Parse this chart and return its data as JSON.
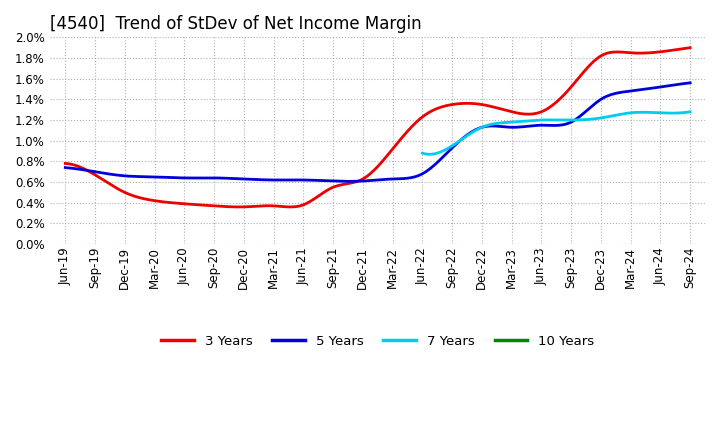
{
  "title": "[4540]  Trend of StDev of Net Income Margin",
  "background_color": "#ffffff",
  "plot_bg_color": "#ffffff",
  "grid_color": "#b0b0b0",
  "ylim": [
    0.0,
    0.02
  ],
  "yticks": [
    0.0,
    0.002,
    0.004,
    0.006,
    0.008,
    0.01,
    0.012,
    0.014,
    0.016,
    0.018,
    0.02
  ],
  "x_labels": [
    "Jun-19",
    "Sep-19",
    "Dec-19",
    "Mar-20",
    "Jun-20",
    "Sep-20",
    "Dec-20",
    "Mar-21",
    "Jun-21",
    "Sep-21",
    "Dec-21",
    "Mar-22",
    "Jun-22",
    "Sep-22",
    "Dec-22",
    "Mar-23",
    "Jun-23",
    "Sep-23",
    "Dec-23",
    "Mar-24",
    "Jun-24",
    "Sep-24"
  ],
  "series": {
    "3 Years": {
      "color": "#ee0000",
      "values": [
        0.0078,
        0.0067,
        0.005,
        0.0042,
        0.0039,
        0.0037,
        0.0036,
        0.0037,
        0.0038,
        0.0055,
        0.0063,
        0.0092,
        0.0123,
        0.0135,
        0.0135,
        0.0128,
        0.0128,
        0.0152,
        0.0182,
        0.0185,
        0.0186,
        0.019
      ]
    },
    "5 Years": {
      "color": "#0000dd",
      "values": [
        0.0074,
        0.007,
        0.0066,
        0.0065,
        0.0064,
        0.0064,
        0.0063,
        0.0062,
        0.0062,
        0.0061,
        0.0061,
        0.0063,
        0.0068,
        0.0093,
        0.0113,
        0.0113,
        0.0115,
        0.0118,
        0.014,
        0.0148,
        0.0152,
        0.0156
      ]
    },
    "7 Years": {
      "color": "#00ccee",
      "values": [
        null,
        null,
        null,
        null,
        null,
        null,
        null,
        null,
        null,
        null,
        null,
        null,
        0.0088,
        0.0095,
        0.0113,
        0.0118,
        0.012,
        0.012,
        0.0122,
        0.0127,
        0.0127,
        0.0128
      ]
    },
    "10 Years": {
      "color": "#008800",
      "values": [
        null,
        null,
        null,
        null,
        null,
        null,
        null,
        null,
        null,
        null,
        null,
        null,
        null,
        null,
        null,
        null,
        null,
        null,
        null,
        null,
        null,
        null
      ]
    }
  },
  "legend_entries": [
    "3 Years",
    "5 Years",
    "7 Years",
    "10 Years"
  ],
  "legend_colors": [
    "#ee0000",
    "#0000dd",
    "#00ccee",
    "#008800"
  ],
  "title_fontsize": 12,
  "tick_fontsize": 8.5,
  "linewidth": 2.0
}
